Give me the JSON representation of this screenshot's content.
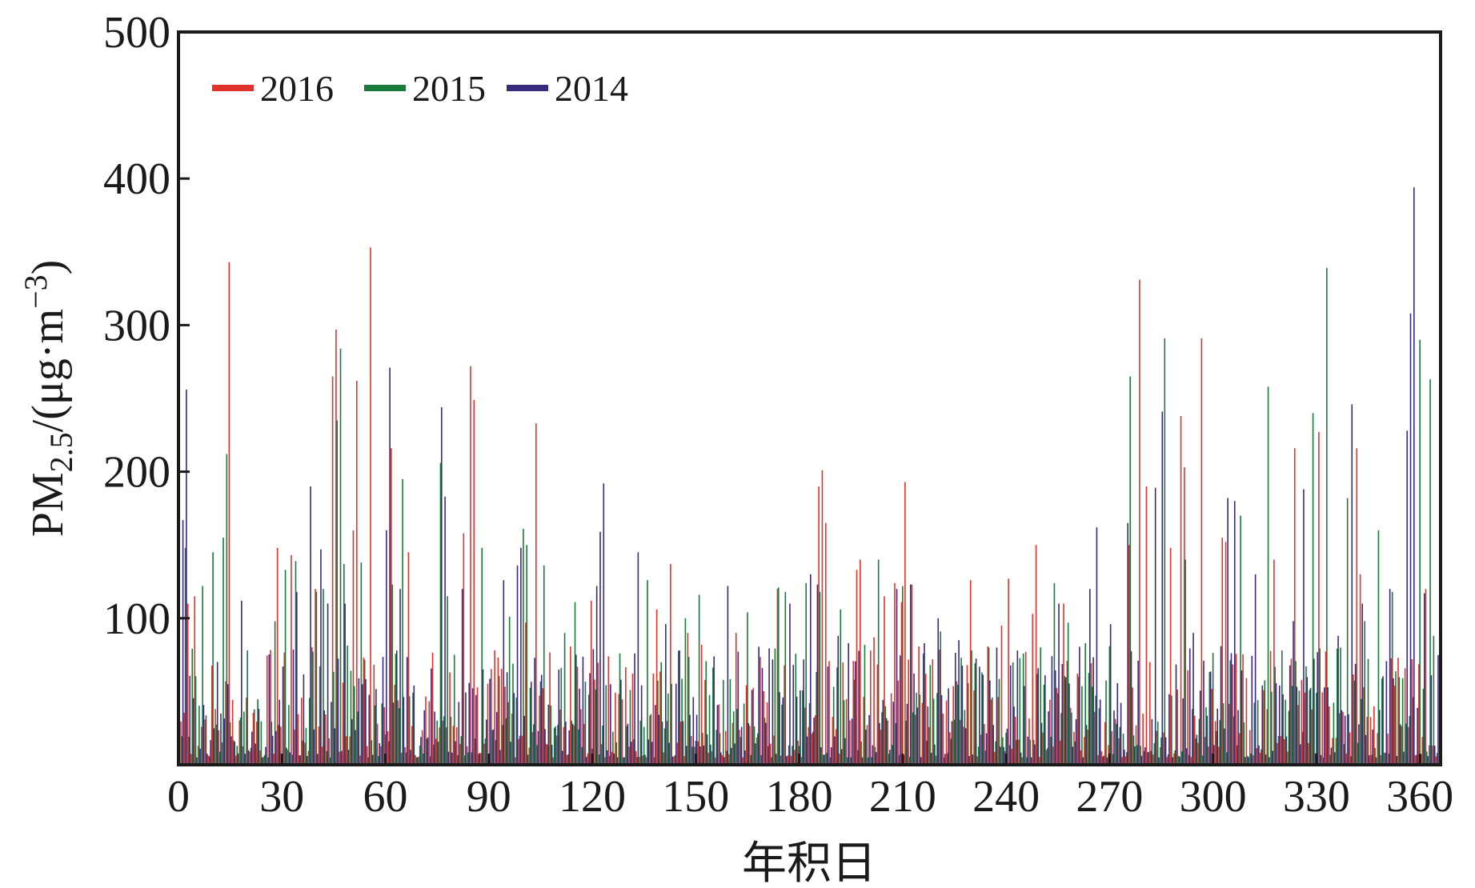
{
  "chart_data": {
    "type": "bar",
    "xlabel": "年积日",
    "ylabel": {
      "prefix": "PM",
      "subscript": "2.5",
      "mid": "/(μg·m",
      "superscript": "−3",
      "suffix": ")"
    },
    "xlim": [
      0,
      366
    ],
    "ylim": [
      0,
      500
    ],
    "x_ticks": [
      0,
      30,
      60,
      90,
      120,
      150,
      180,
      210,
      240,
      270,
      300,
      330,
      360
    ],
    "x_tick_labels": [
      "0",
      "30",
      "60",
      "90",
      "120",
      "150",
      "180",
      "210",
      "240",
      "270",
      "300",
      "330",
      "360"
    ],
    "y_ticks": [
      100,
      200,
      300,
      400,
      500
    ],
    "y_tick_labels": [
      "100",
      "200",
      "300",
      "400",
      "500"
    ],
    "grid": false,
    "legend_position": "top-left",
    "series": [
      {
        "name": "2016",
        "color": "#e0332b",
        "peaks": [
          [
            3,
            110
          ],
          [
            5,
            115
          ],
          [
            15,
            343
          ],
          [
            29,
            148
          ],
          [
            33,
            143
          ],
          [
            40,
            120
          ],
          [
            45,
            265
          ],
          [
            46,
            297
          ],
          [
            51,
            160
          ],
          [
            52,
            262
          ],
          [
            56,
            353
          ],
          [
            62,
            216
          ],
          [
            67,
            145
          ],
          [
            83,
            158
          ],
          [
            85,
            272
          ],
          [
            86,
            249
          ],
          [
            101,
            97
          ],
          [
            104,
            233
          ],
          [
            120,
            112
          ],
          [
            125,
            74
          ],
          [
            139,
            106
          ],
          [
            143,
            137
          ],
          [
            148,
            90
          ],
          [
            152,
            82
          ],
          [
            162,
            90
          ],
          [
            174,
            120
          ],
          [
            186,
            190
          ],
          [
            187,
            201
          ],
          [
            188,
            165
          ],
          [
            197,
            133
          ],
          [
            198,
            140
          ],
          [
            202,
            87
          ],
          [
            205,
            115
          ],
          [
            208,
            124
          ],
          [
            210,
            111
          ],
          [
            211,
            193
          ],
          [
            213,
            123
          ],
          [
            219,
            72
          ],
          [
            230,
            126
          ],
          [
            239,
            95
          ],
          [
            241,
            127
          ],
          [
            248,
            103
          ],
          [
            249,
            150
          ],
          [
            257,
            110
          ],
          [
            276,
            150
          ],
          [
            279,
            331
          ],
          [
            281,
            190
          ],
          [
            288,
            148
          ],
          [
            291,
            238
          ],
          [
            292,
            203
          ],
          [
            297,
            291
          ],
          [
            303,
            155
          ],
          [
            304,
            152
          ],
          [
            318,
            140
          ],
          [
            324,
            216
          ],
          [
            331,
            227
          ],
          [
            342,
            216
          ],
          [
            343,
            130
          ],
          [
            358,
            72
          ],
          [
            362,
            120
          ]
        ],
        "values_typical_range": [
          5,
          60
        ]
      },
      {
        "name": "2015",
        "color": "#1a7a3c",
        "peaks": [
          [
            2,
            148
          ],
          [
            7,
            122
          ],
          [
            10,
            145
          ],
          [
            13,
            155
          ],
          [
            14,
            212
          ],
          [
            20,
            78
          ],
          [
            28,
            98
          ],
          [
            31,
            133
          ],
          [
            34,
            139
          ],
          [
            40,
            118
          ],
          [
            42,
            120
          ],
          [
            46,
            235
          ],
          [
            47,
            284
          ],
          [
            48,
            137
          ],
          [
            53,
            138
          ],
          [
            62,
            123
          ],
          [
            65,
            195
          ],
          [
            76,
            206
          ],
          [
            78,
            115
          ],
          [
            88,
            148
          ],
          [
            96,
            101
          ],
          [
            100,
            161
          ],
          [
            101,
            150
          ],
          [
            106,
            136
          ],
          [
            112,
            90
          ],
          [
            115,
            111
          ],
          [
            128,
            76
          ],
          [
            136,
            126
          ],
          [
            140,
            70
          ],
          [
            147,
            100
          ],
          [
            151,
            116
          ],
          [
            165,
            104
          ],
          [
            174,
            121
          ],
          [
            176,
            118
          ],
          [
            182,
            124
          ],
          [
            186,
            118
          ],
          [
            192,
            106
          ],
          [
            196,
            58
          ],
          [
            203,
            140
          ],
          [
            210,
            122
          ],
          [
            221,
            91
          ],
          [
            227,
            73
          ],
          [
            233,
            63
          ],
          [
            235,
            80
          ],
          [
            242,
            70
          ],
          [
            254,
            124
          ],
          [
            258,
            97
          ],
          [
            263,
            83
          ],
          [
            276,
            265
          ],
          [
            286,
            291
          ],
          [
            292,
            140
          ],
          [
            308,
            170
          ],
          [
            316,
            258
          ],
          [
            320,
            78
          ],
          [
            329,
            240
          ],
          [
            333,
            339
          ],
          [
            339,
            182
          ],
          [
            344,
            98
          ],
          [
            348,
            160
          ],
          [
            352,
            118
          ],
          [
            360,
            290
          ],
          [
            363,
            263
          ],
          [
            364,
            88
          ]
        ],
        "values_typical_range": [
          5,
          60
        ]
      },
      {
        "name": "2014",
        "color": "#3a2a7e",
        "peaks": [
          [
            2,
            256
          ],
          [
            1,
            167
          ],
          [
            18,
            112
          ],
          [
            34,
            118
          ],
          [
            38,
            190
          ],
          [
            41,
            147
          ],
          [
            43,
            110
          ],
          [
            48,
            110
          ],
          [
            60,
            160
          ],
          [
            61,
            271
          ],
          [
            64,
            120
          ],
          [
            76,
            244
          ],
          [
            77,
            183
          ],
          [
            82,
            120
          ],
          [
            94,
            126
          ],
          [
            98,
            136
          ],
          [
            99,
            148
          ],
          [
            110,
            65
          ],
          [
            121,
            122
          ],
          [
            122,
            159
          ],
          [
            123,
            192
          ],
          [
            125,
            55
          ],
          [
            133,
            145
          ],
          [
            141,
            96
          ],
          [
            145,
            78
          ],
          [
            155,
            74
          ],
          [
            159,
            122
          ],
          [
            169,
            66
          ],
          [
            177,
            110
          ],
          [
            183,
            130
          ],
          [
            185,
            123
          ],
          [
            191,
            88
          ],
          [
            194,
            83
          ],
          [
            208,
            120
          ],
          [
            212,
            123
          ],
          [
            216,
            83
          ],
          [
            220,
            100
          ],
          [
            226,
            85
          ],
          [
            237,
            80
          ],
          [
            243,
            78
          ],
          [
            255,
            110
          ],
          [
            264,
            120
          ],
          [
            266,
            162
          ],
          [
            270,
            96
          ],
          [
            275,
            165
          ],
          [
            283,
            189
          ],
          [
            285,
            241
          ],
          [
            294,
            90
          ],
          [
            304,
            182
          ],
          [
            306,
            180
          ],
          [
            312,
            130
          ],
          [
            323,
            98
          ],
          [
            326,
            188
          ],
          [
            336,
            88
          ],
          [
            340,
            246
          ],
          [
            343,
            110
          ],
          [
            351,
            120
          ],
          [
            356,
            228
          ],
          [
            357,
            308
          ],
          [
            358,
            394
          ],
          [
            361,
            117
          ]
        ],
        "values_typical_range": [
          5,
          60
        ]
      }
    ]
  },
  "legend": {
    "entries": [
      {
        "label": "2016",
        "color": "#e0332b"
      },
      {
        "label": "2015",
        "color": "#1a7a3c"
      },
      {
        "label": "2014",
        "color": "#3a2a7e"
      }
    ]
  }
}
